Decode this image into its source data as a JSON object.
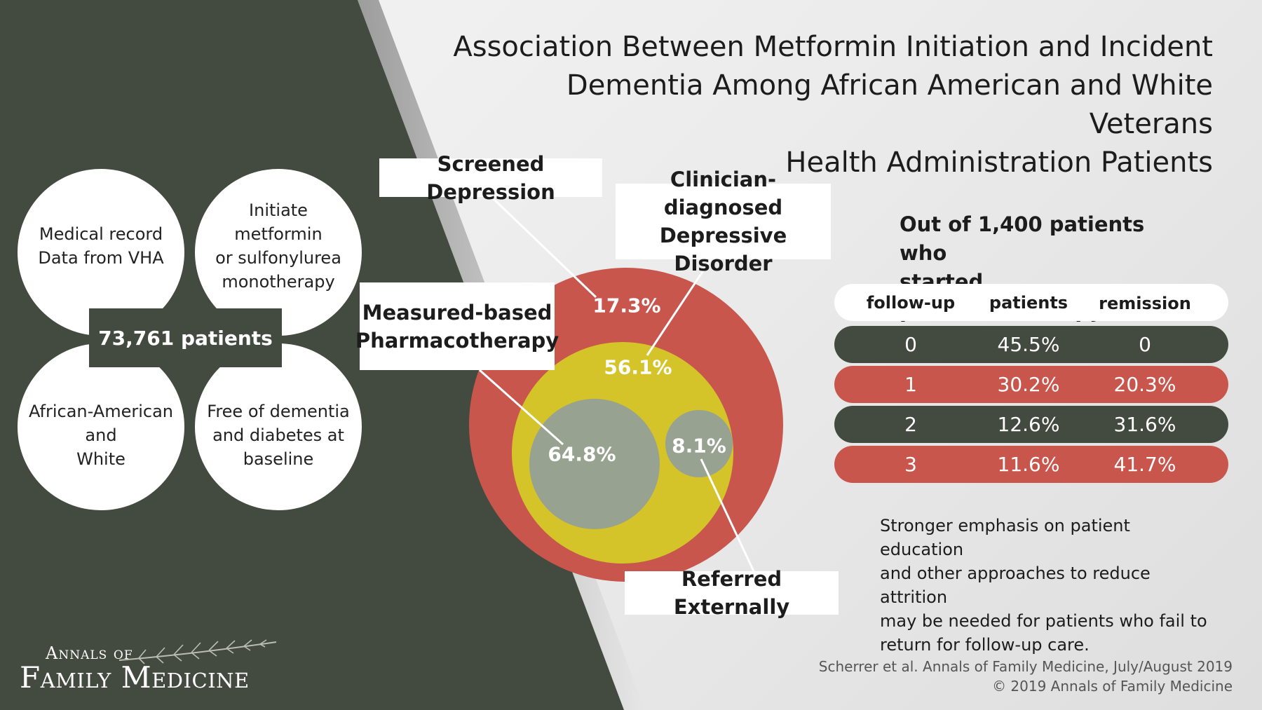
{
  "title": "Association Between Metformin Initiation and Incident\nDementia Among African American and White Veterans\nHealth Administration Patients",
  "criteria": {
    "c1": "Medical record\nData from VHA",
    "c2": "Initiate metformin\nor sulfonylurea\nmonotherapy",
    "c3": "African-American\nand\nWhite",
    "c4": "Free of dementia\nand diabetes at\nbaseline",
    "patients": "73,761 patients"
  },
  "venn": {
    "screened_label": "Screened Depression",
    "clinician_label": "Clinician-diagnosed\nDepressive Disorder",
    "measured_label": "Measured-based\nPharmacotherapy",
    "referred_label": "Referred Externally",
    "screened_pct": "17.3%",
    "clinician_pct": "56.1%",
    "measured_pct": "64.8%",
    "referred_pct": "8.1%"
  },
  "subhead": "Out of 1,400 patients who\nstarted pharmacotherapy",
  "table": {
    "headers": [
      "follow-up",
      "patients",
      "remission"
    ],
    "rows": [
      [
        "0",
        "45.5%",
        "0"
      ],
      [
        "1",
        "30.2%",
        "20.3%"
      ],
      [
        "2",
        "12.6%",
        "31.6%"
      ],
      [
        "3",
        "11.6%",
        "41.7%"
      ]
    ]
  },
  "note": "Stronger emphasis on patient education\nand other approaches to reduce attrition\nmay be needed for patients who fail to\nreturn for follow-up care.",
  "citation": {
    "line1": "Scherrer et al. Annals of Family Medicine, July/August 2019",
    "line2": "© 2019 Annals of Family Medicine"
  },
  "logo": {
    "top": "Annals of",
    "bottom": "Family Medicine"
  },
  "colors": {
    "dark": "#434a3f",
    "red": "#c9564c",
    "yellow": "#d4c42a",
    "gray": "#98a291"
  }
}
